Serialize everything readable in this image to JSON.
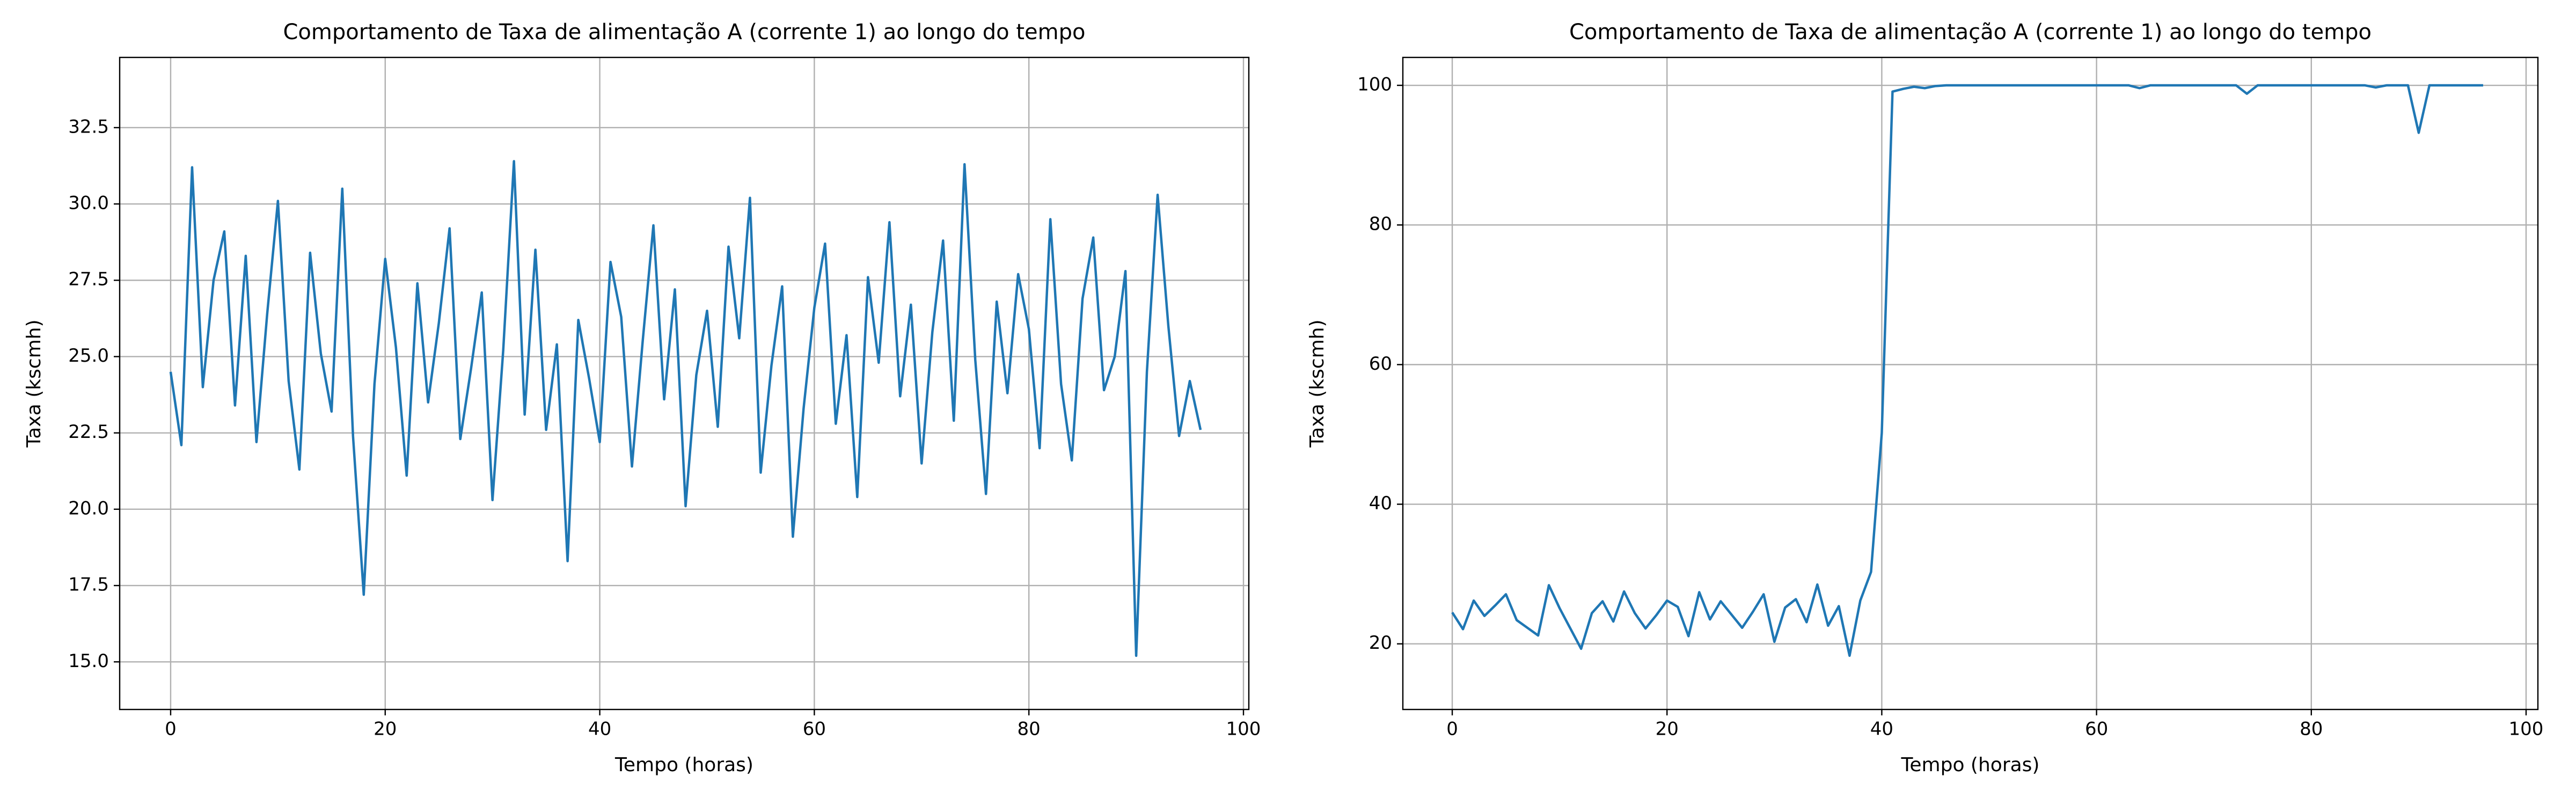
{
  "chart_data": [
    {
      "type": "line",
      "title": "Comportamento de Taxa de alimentação A (corrente 1) ao longo do tempo",
      "x_label": "Tempo (horas)",
      "y_label": "Taxa (kscmh)",
      "x": [
        0,
        1,
        2,
        3,
        4,
        5,
        6,
        7,
        8,
        9,
        10,
        11,
        12,
        13,
        14,
        15,
        16,
        17,
        18,
        19,
        20,
        21,
        22,
        23,
        24,
        25,
        26,
        27,
        28,
        29,
        30,
        31,
        32,
        33,
        34,
        35,
        36,
        37,
        38,
        39,
        40,
        41,
        42,
        43,
        44,
        45,
        46,
        47,
        48,
        49,
        50,
        51,
        52,
        53,
        54,
        55,
        56,
        57,
        58,
        59,
        60,
        61,
        62,
        63,
        64,
        65,
        66,
        67,
        68,
        69,
        70,
        71,
        72,
        73,
        74,
        75,
        76,
        77,
        78,
        79,
        80,
        81,
        82,
        83,
        84,
        85,
        86,
        87,
        88,
        89,
        90,
        91,
        92,
        93,
        94,
        95,
        96
      ],
      "series": [
        {
          "name": "Taxa de alimentação A (corrente 1)",
          "color": "#1f77b4",
          "values": [
            24.5,
            22.1,
            31.2,
            24.0,
            27.5,
            29.1,
            23.4,
            28.3,
            22.2,
            26.4,
            30.1,
            24.2,
            21.3,
            28.4,
            25.1,
            23.2,
            30.5,
            22.4,
            17.2,
            24.1,
            28.2,
            25.3,
            21.1,
            27.4,
            23.5,
            26.1,
            29.2,
            22.3,
            24.6,
            27.1,
            20.3,
            25.2,
            31.4,
            23.1,
            28.5,
            22.6,
            25.4,
            18.3,
            26.2,
            24.3,
            22.2,
            28.1,
            26.3,
            21.4,
            25.5,
            29.3,
            23.6,
            27.2,
            20.1,
            24.4,
            26.5,
            22.7,
            28.6,
            25.6,
            30.2,
            21.2,
            24.7,
            27.3,
            19.1,
            23.3,
            26.6,
            28.7,
            22.8,
            25.7,
            20.4,
            27.6,
            24.8,
            29.4,
            23.7,
            26.7,
            21.5,
            25.8,
            28.8,
            22.9,
            31.3,
            24.9,
            20.5,
            26.8,
            23.8,
            27.7,
            25.9,
            22.0,
            29.5,
            24.1,
            21.6,
            26.9,
            28.9,
            23.9,
            25.0,
            27.8,
            15.2,
            24.5,
            30.3,
            26.0,
            22.4,
            24.2,
            22.6
          ]
        }
      ],
      "xlim": [
        -4.75,
        100.5
      ],
      "ylim": [
        13.44,
        34.8
      ],
      "xticks": [
        0,
        20,
        40,
        60,
        80,
        100
      ],
      "yticks": [
        {
          "value": 15,
          "label": "15.0"
        },
        17.5,
        {
          "value": 20,
          "label": "20.0"
        },
        22.5,
        {
          "value": 25,
          "label": "25.0"
        },
        27.5,
        {
          "value": 30,
          "label": "30.0"
        },
        32.5
      ],
      "grid": true
    },
    {
      "type": "line",
      "title": "Comportamento de Taxa de alimentação A (corrente 1) ao longo do tempo",
      "x_label": "Tempo (horas)",
      "y_label": "Taxa (kscmh)",
      "x": [
        0,
        1,
        2,
        3,
        4,
        5,
        6,
        7,
        8,
        9,
        10,
        11,
        12,
        13,
        14,
        15,
        16,
        17,
        18,
        19,
        20,
        21,
        22,
        23,
        24,
        25,
        26,
        27,
        28,
        29,
        30,
        31,
        32,
        33,
        34,
        35,
        36,
        37,
        38,
        39,
        40,
        41,
        42,
        43,
        44,
        45,
        46,
        47,
        48,
        49,
        50,
        51,
        52,
        53,
        54,
        55,
        56,
        57,
        58,
        59,
        60,
        61,
        62,
        63,
        64,
        65,
        66,
        67,
        68,
        69,
        70,
        71,
        72,
        73,
        74,
        75,
        76,
        77,
        78,
        79,
        80,
        81,
        82,
        83,
        84,
        85,
        86,
        87,
        88,
        89,
        90,
        91,
        92,
        93,
        94,
        95,
        96
      ],
      "series": [
        {
          "name": "Taxa de alimentação A (corrente 1)",
          "color": "#1f77b4",
          "values": [
            24.5,
            22.1,
            26.2,
            24.0,
            25.5,
            27.1,
            23.4,
            22.3,
            21.2,
            28.4,
            25.1,
            22.2,
            19.3,
            24.4,
            26.1,
            23.2,
            27.5,
            24.4,
            22.2,
            24.1,
            26.2,
            25.3,
            21.1,
            27.4,
            23.5,
            26.1,
            24.2,
            22.3,
            24.6,
            27.1,
            20.3,
            25.2,
            26.4,
            23.1,
            28.5,
            22.6,
            25.4,
            18.3,
            26.2,
            30.3,
            50.2,
            99.1,
            99.5,
            99.8,
            99.6,
            99.9,
            100,
            100,
            100,
            100,
            100,
            100,
            100,
            100,
            100,
            100,
            100,
            100,
            100,
            100,
            100,
            100,
            100,
            100,
            99.6,
            100,
            100,
            100,
            100,
            100,
            100,
            100,
            100,
            100,
            98.8,
            100,
            100,
            100,
            100,
            100,
            100,
            100,
            100,
            100,
            100,
            100,
            99.7,
            100,
            100,
            100,
            93.2,
            100,
            100,
            100,
            100,
            100,
            100
          ]
        }
      ],
      "xlim": [
        -4.6,
        101.1
      ],
      "ylim": [
        10.6,
        104
      ],
      "xticks": [
        0,
        20,
        40,
        60,
        80,
        100
      ],
      "yticks": [
        20,
        40,
        60,
        80,
        100
      ],
      "grid": true
    }
  ]
}
